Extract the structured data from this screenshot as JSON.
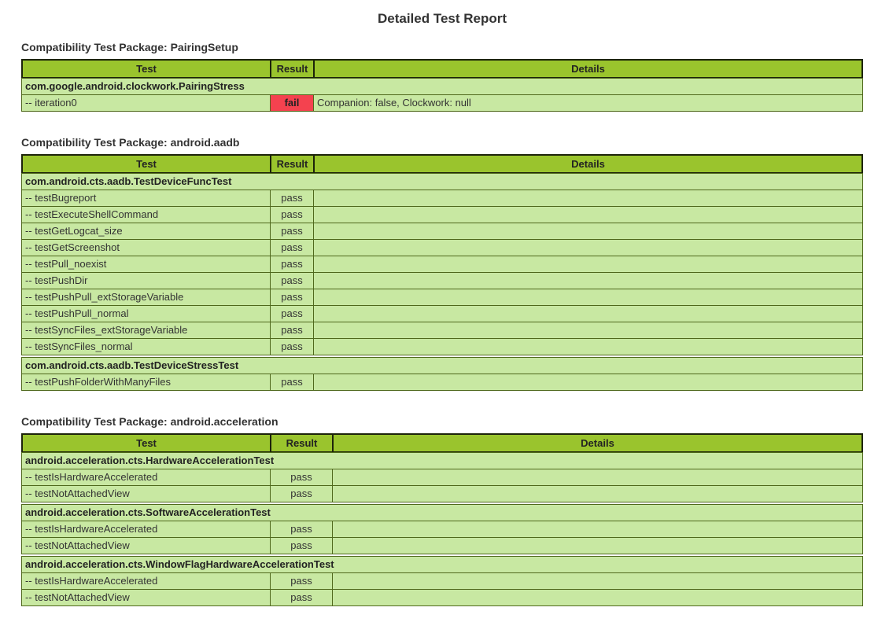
{
  "title": "Detailed Test Report",
  "columns": [
    "Test",
    "Result",
    "Details"
  ],
  "colors": {
    "header_green": "#9ac42d",
    "row_green": "#c8e8a2",
    "fail_red": "#f4424f",
    "border_olive": "#4f681c"
  },
  "packages": [
    {
      "heading": "Compatibility Test Package: PairingSetup",
      "cases": [
        {
          "name": "com.google.android.clockwork.PairingStress",
          "tests": [
            {
              "name": "-- iteration0",
              "result": "fail",
              "details": "Companion: false, Clockwork: null"
            }
          ]
        }
      ]
    },
    {
      "heading": "Compatibility Test Package: android.aadb",
      "cases": [
        {
          "name": "com.android.cts.aadb.TestDeviceFuncTest",
          "tests": [
            {
              "name": "-- testBugreport",
              "result": "pass",
              "details": ""
            },
            {
              "name": "-- testExecuteShellCommand",
              "result": "pass",
              "details": ""
            },
            {
              "name": "-- testGetLogcat_size",
              "result": "pass",
              "details": ""
            },
            {
              "name": "-- testGetScreenshot",
              "result": "pass",
              "details": ""
            },
            {
              "name": "-- testPull_noexist",
              "result": "pass",
              "details": ""
            },
            {
              "name": "-- testPushDir",
              "result": "pass",
              "details": ""
            },
            {
              "name": "-- testPushPull_extStorageVariable",
              "result": "pass",
              "details": ""
            },
            {
              "name": "-- testPushPull_normal",
              "result": "pass",
              "details": ""
            },
            {
              "name": "-- testSyncFiles_extStorageVariable",
              "result": "pass",
              "details": ""
            },
            {
              "name": "-- testSyncFiles_normal",
              "result": "pass",
              "details": ""
            }
          ]
        },
        {
          "name": "com.android.cts.aadb.TestDeviceStressTest",
          "tests": [
            {
              "name": "-- testPushFolderWithManyFiles",
              "result": "pass",
              "details": ""
            }
          ]
        }
      ]
    },
    {
      "heading": "Compatibility Test Package: android.acceleration",
      "cases": [
        {
          "name": "android.acceleration.cts.HardwareAccelerationTest",
          "tests": [
            {
              "name": "-- testIsHardwareAccelerated",
              "result": "pass",
              "details": ""
            },
            {
              "name": "-- testNotAttachedView",
              "result": "pass",
              "details": ""
            }
          ]
        },
        {
          "name": "android.acceleration.cts.SoftwareAccelerationTest",
          "tests": [
            {
              "name": "-- testIsHardwareAccelerated",
              "result": "pass",
              "details": ""
            },
            {
              "name": "-- testNotAttachedView",
              "result": "pass",
              "details": ""
            }
          ]
        },
        {
          "name": "android.acceleration.cts.WindowFlagHardwareAccelerationTest",
          "tests": [
            {
              "name": "-- testIsHardwareAccelerated",
              "result": "pass",
              "details": ""
            },
            {
              "name": "-- testNotAttachedView",
              "result": "pass",
              "details": ""
            }
          ]
        }
      ]
    }
  ]
}
